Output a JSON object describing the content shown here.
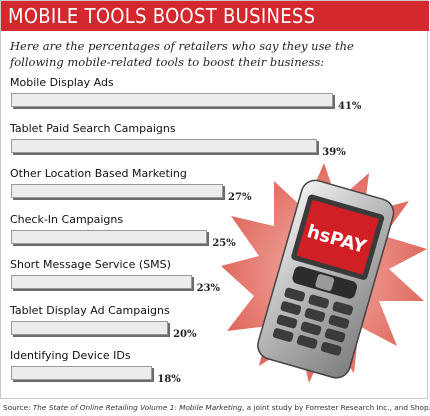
{
  "title": "MOBILE TOOLS BOOST BUSINESS",
  "intro": "Here are the percentages of retailers who say they use the following mobile-related tools to boost their business:",
  "chart_data": {
    "type": "bar",
    "orientation": "horizontal",
    "categories": [
      "Mobile Display Ads",
      "Tablet Paid Search Campaigns",
      "Other Location Based Marketing",
      "Check-In Campaigns",
      "Short Message Service (SMS)",
      "Tablet Display Ad Campaigns",
      "Identifying Device IDs"
    ],
    "values": [
      41,
      39,
      27,
      25,
      23,
      20,
      18
    ],
    "value_labels": [
      "41%",
      "39%",
      "27%",
      "25%",
      "23%",
      "20%",
      "18%"
    ],
    "unit": "%",
    "grid": false,
    "legend": "none"
  },
  "phone_logo_text": "hsPAY",
  "source": {
    "prefix": "Source: ",
    "italic1": "The State of Online Retailing Volume 1: Mobile Marketing",
    "rest": ", a joint study by Forrester Research Inc., and Shop.Org"
  },
  "colors": {
    "accent": "#d3282d",
    "bar_fill": "#ececec",
    "bar_shadow": "#6b6b6b"
  }
}
